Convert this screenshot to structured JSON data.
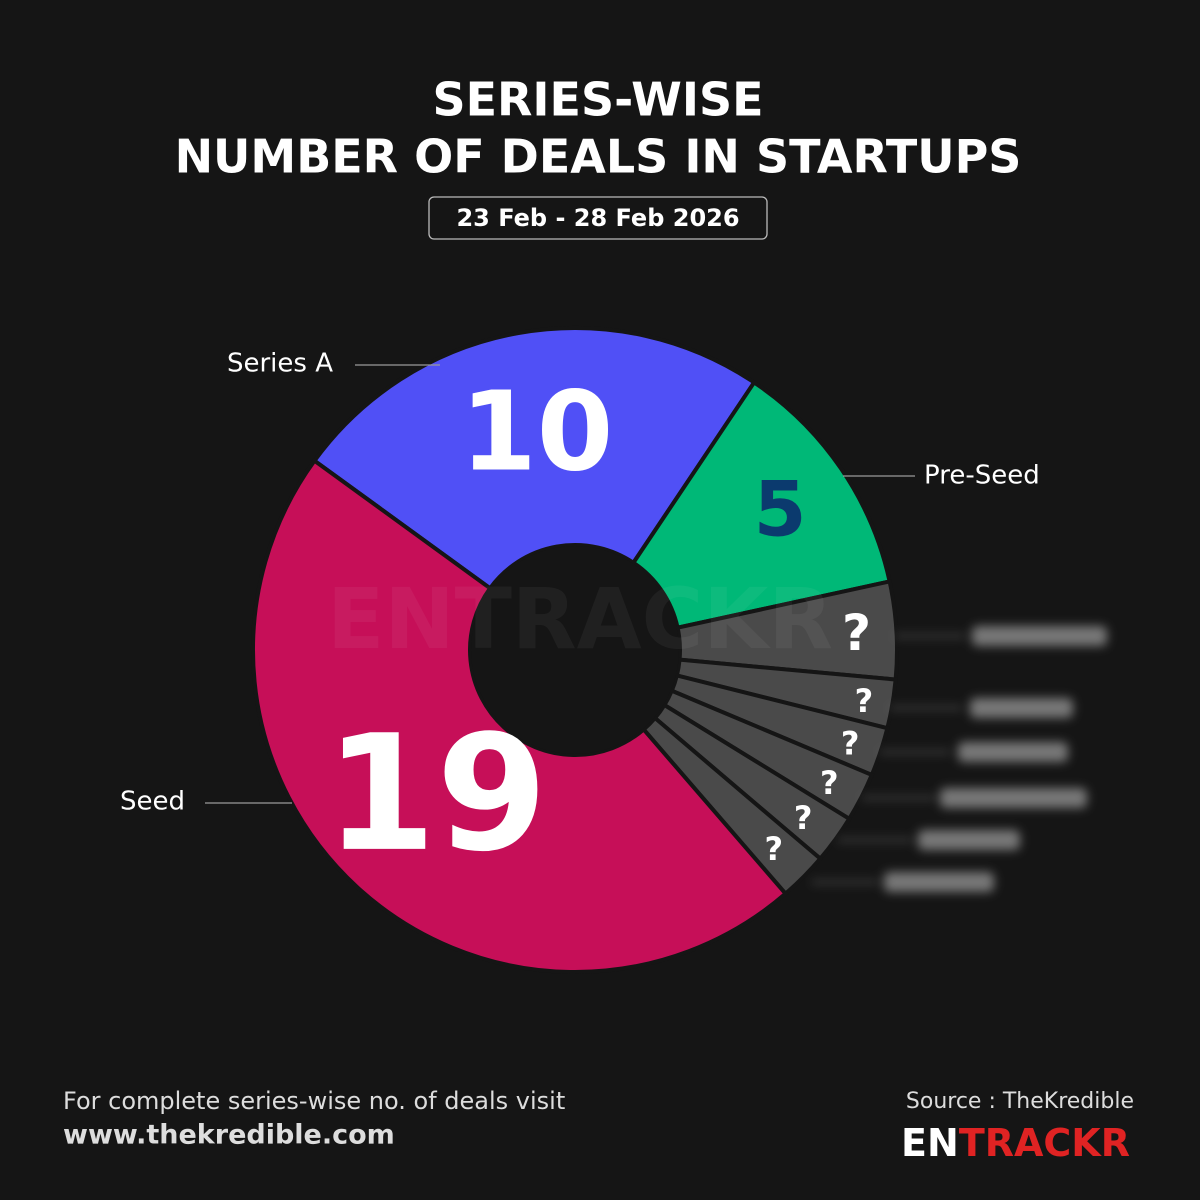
{
  "chart_data": {
    "type": "pie",
    "title": [
      "SERIES-WISE",
      "NUMBER OF DEALS IN STARTUPS"
    ],
    "subtitle": "23 Feb - 28 Feb 2026",
    "categories": [
      "Series A",
      "Pre-Seed",
      null,
      null,
      null,
      null,
      null,
      null,
      "Seed"
    ],
    "values": [
      10,
      5,
      2,
      1,
      1,
      1,
      1,
      1,
      19
    ],
    "value_labels": [
      "10",
      "5",
      "?",
      "?",
      "?",
      "?",
      "?",
      "?",
      "19"
    ],
    "colors": [
      "#5050f6",
      "#00b877",
      "#4a4a4a",
      "#4a4a4a",
      "#4a4a4a",
      "#4a4a4a",
      "#4a4a4a",
      "#4a4a4a",
      "#c60f58"
    ],
    "value_label_colors": [
      "#ffffff",
      "#0b3a6e",
      "#ffffff",
      "#ffffff",
      "#ffffff",
      "#ffffff",
      "#ffffff",
      "#ffffff",
      "#ffffff"
    ],
    "watermark": "ENTRACKR"
  },
  "footer": {
    "note": "For complete series-wise no. of deals visit",
    "url": "www.thekredible.com",
    "source": "Source : TheKredible",
    "logo": {
      "first": "EN",
      "rest": "TRACKR"
    }
  }
}
